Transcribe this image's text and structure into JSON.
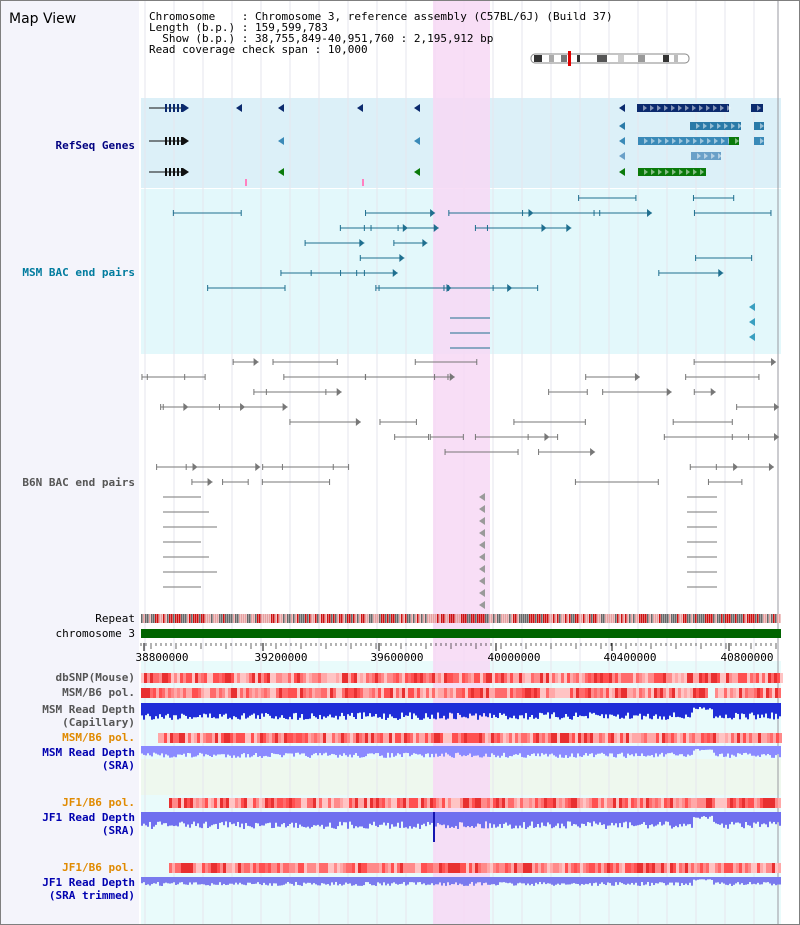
{
  "app": {
    "title": "Map View"
  },
  "info": {
    "chromosome_key": "Chromosome",
    "chromosome_value": "Chromosome 3, reference assembly (C57BL/6J) (Build 37)",
    "length_key": "Length (b.p.)",
    "length_value": "159,599,783",
    "show_key": "Show (b.p.)",
    "show_value": "38,755,849-40,951,760 : 2,195,912 bp",
    "coverage_key": "Read coverage check span",
    "coverage_value": "10,000"
  },
  "tracks": {
    "refseq": "RefSeq Genes",
    "msm_bac": "MSM BAC end pairs",
    "b6n_bac": "B6N BAC end pairs",
    "repeat": "Repeat",
    "chromosome": "chromosome 3",
    "dbsnp": "dbSNP(Mouse)",
    "msm_b6_pol_1": "MSM/B6 pol.",
    "msm_read_depth_cap_1": "MSM Read Depth",
    "msm_read_depth_cap_2": "(Capillary)",
    "msm_b6_pol_2": "MSM/B6 pol.",
    "msm_read_depth_sra_1": "MSM Read Depth",
    "msm_read_depth_sra_2": "(SRA)",
    "jf1_b6_pol_1": "JF1/B6 pol.",
    "jf1_read_depth_sra_1": "JF1 Read Depth",
    "jf1_read_depth_sra_2": "(SRA)",
    "jf1_b6_pol_2": "JF1/B6 pol.",
    "jf1_read_depth_trim_1": "JF1 Read Depth",
    "jf1_read_depth_trim_2": "(SRA trimmed)"
  },
  "axis": {
    "ticks": [
      "38800000",
      "39200000",
      "39600000",
      "40000000",
      "40400000",
      "40800000"
    ]
  },
  "colors": {
    "refseq_label": "#000080",
    "msm_label": "#007b9e",
    "b6n_label": "#555555",
    "pol_label": "#e08a00",
    "depth_label": "#0000b0",
    "highlight": "#f7d8f5",
    "chromosome_bar": "#006400"
  },
  "icons": {
    "ideogram": "chromosome-ideogram-icon"
  }
}
